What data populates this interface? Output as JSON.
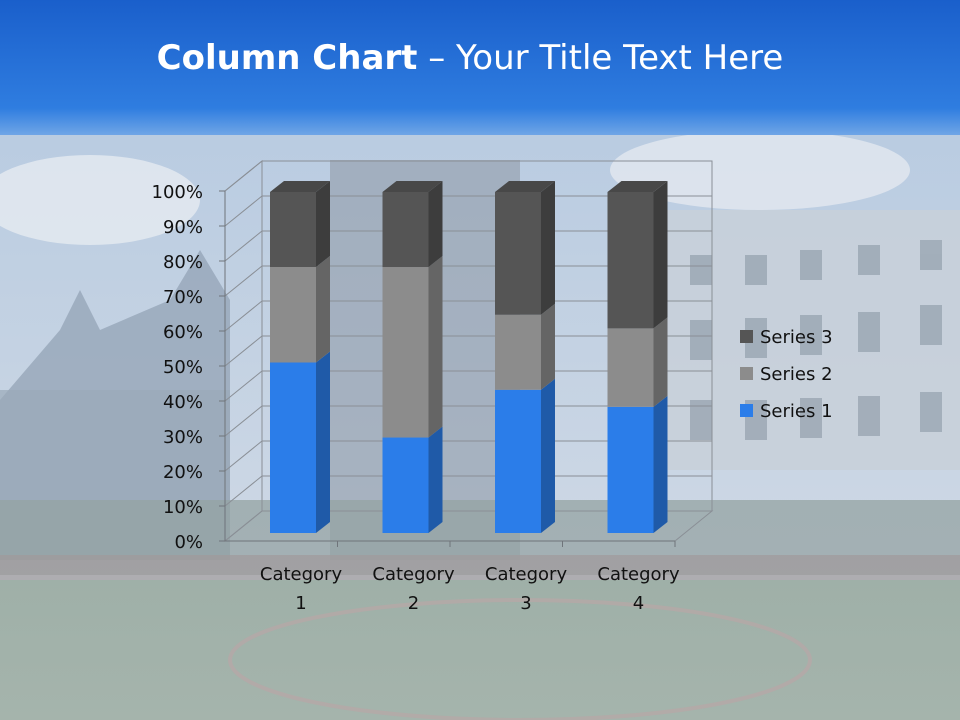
{
  "slide": {
    "title_bold": "Column Chart",
    "title_rest": " – Your Title Text Here"
  },
  "chart_data": {
    "type": "bar",
    "stacked": "percent",
    "three_d": true,
    "categories": [
      "Category\n1",
      "Category\n2",
      "Category\n3",
      "Category\n4"
    ],
    "series": [
      {
        "name": "Series 1",
        "values": [
          50,
          28,
          42,
          37
        ],
        "color": "#2b7de9"
      },
      {
        "name": "Series 2",
        "values": [
          28,
          50,
          22,
          23
        ],
        "color": "#8c8c8c"
      },
      {
        "name": "Series 3",
        "values": [
          22,
          22,
          36,
          40
        ],
        "color": "#555555"
      }
    ],
    "y_ticks": [
      "0%",
      "10%",
      "20%",
      "30%",
      "40%",
      "50%",
      "60%",
      "70%",
      "80%",
      "90%",
      "100%"
    ],
    "ylim": [
      0,
      100
    ],
    "legend_position": "right",
    "grid": true
  }
}
